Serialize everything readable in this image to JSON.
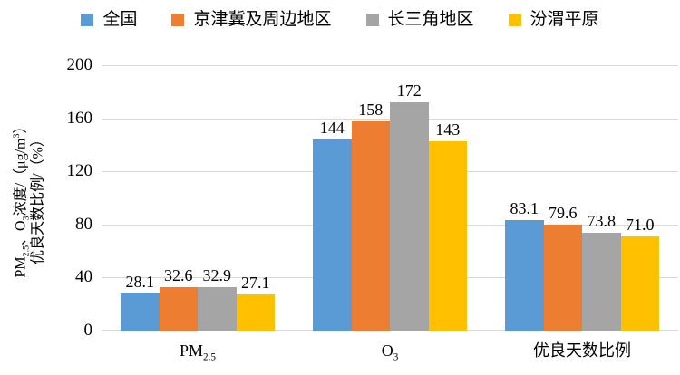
{
  "chart_data": {
    "type": "bar",
    "title": "",
    "categories": [
      "PM2.5",
      "O3",
      "优良天数比例"
    ],
    "categories_rich": [
      [
        {
          "t": "PM"
        },
        {
          "t": "2.5",
          "sub": true
        }
      ],
      [
        {
          "t": "O"
        },
        {
          "t": "3",
          "sub": true
        }
      ],
      [
        {
          "t": "优良天数比例"
        }
      ]
    ],
    "series": [
      {
        "name": "全国",
        "color": "#5B9BD5",
        "values": [
          28.1,
          144,
          83.1
        ],
        "labels": [
          "28.1",
          "144",
          "83.1"
        ]
      },
      {
        "name": "京津冀及周边地区",
        "color": "#ED7D31",
        "values": [
          32.6,
          158,
          79.6
        ],
        "labels": [
          "32.6",
          "158",
          "79.6"
        ]
      },
      {
        "name": "长三角地区",
        "color": "#A5A5A5",
        "values": [
          32.9,
          172,
          73.8
        ],
        "labels": [
          "32.9",
          "172",
          "73.8"
        ]
      },
      {
        "name": "汾渭平原",
        "color": "#FFC000",
        "values": [
          27.1,
          143,
          71.0
        ],
        "labels": [
          "27.1",
          "143",
          "71.0"
        ]
      }
    ],
    "xlabel": "",
    "ylabel": "PM2.5、O3浓度/（μg/m³） 优良天数比例/（%）",
    "ylabel_lines_rich": [
      [
        {
          "t": "PM"
        },
        {
          "t": "2.5",
          "sub": true
        },
        {
          "t": "、O"
        },
        {
          "t": "3",
          "sub": true
        },
        {
          "t": "浓度/（μg/m"
        },
        {
          "t": "3",
          "sup": true
        },
        {
          "t": "）"
        }
      ],
      [
        {
          "t": "优良天数比例/（%）"
        }
      ]
    ],
    "ylim": [
      0,
      200
    ],
    "y_ticks": [
      0,
      40,
      80,
      120,
      160,
      200
    ],
    "grid": true,
    "legend_position": "top",
    "colors": {
      "gridline": "#D9D9D9",
      "axis_line": "#D9D9D9",
      "text": "#000000",
      "background": "#FFFFFF"
    }
  }
}
